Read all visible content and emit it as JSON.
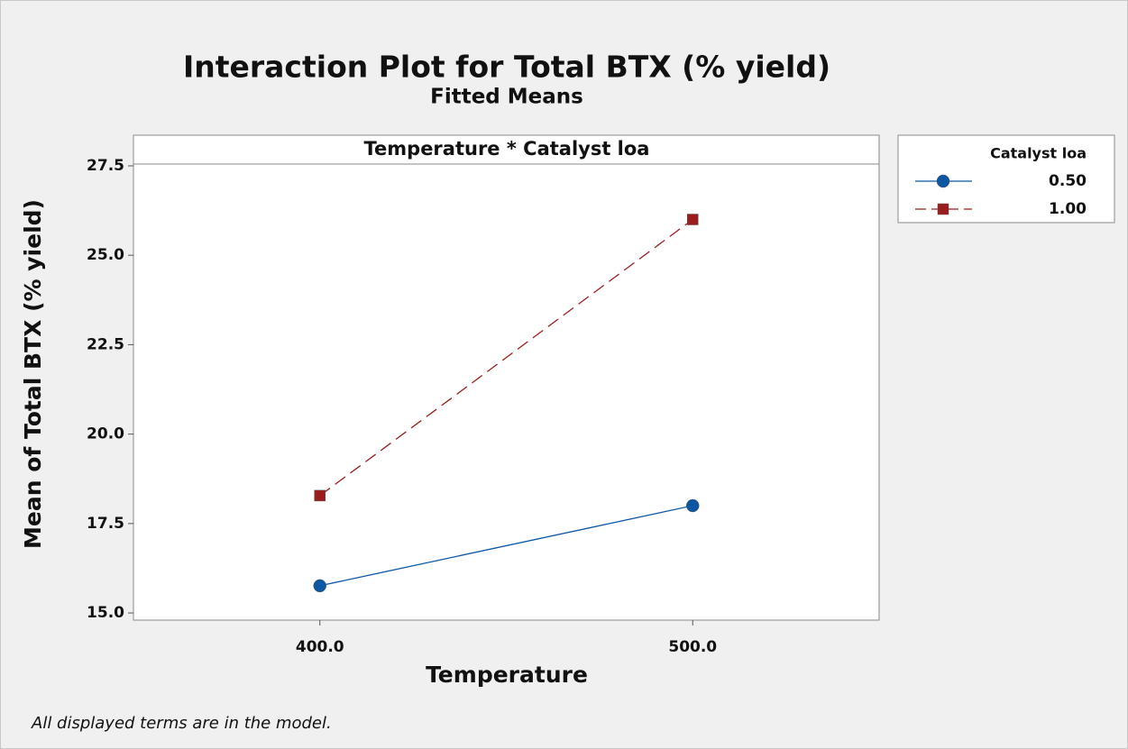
{
  "chart_data": {
    "type": "line",
    "title": "Interaction Plot for Total BTX (% yield)",
    "subtitle": "Fitted Means",
    "panel_title": "Temperature * Catalyst loa",
    "x_label": "Temperature",
    "y_label": "Mean of Total BTX (% yield)",
    "footnote": "All displayed terms are in the model.",
    "legend_title": "Catalyst loa",
    "x": [
      400,
      500
    ],
    "xlim": [
      350,
      550
    ],
    "xticks": [
      {
        "value": 400,
        "label": "400.0"
      },
      {
        "value": 500,
        "label": "500.0"
      }
    ],
    "ylim": [
      14.8,
      27.55
    ],
    "yticks": [
      {
        "value": 15,
        "label": "15.0"
      },
      17.5,
      {
        "value": 20,
        "label": "20.0"
      },
      22.5,
      {
        "value": 25,
        "label": "25.0"
      },
      27.5
    ],
    "series": [
      {
        "name": "0.50",
        "color": "#0b57a4",
        "marker": "circle",
        "line_style": "solid",
        "values": [
          15.76,
          18.0
        ]
      },
      {
        "name": "1.00",
        "color": "#9b1c1c",
        "marker": "square",
        "line_style": "dashed",
        "values": [
          18.28,
          26.0
        ]
      }
    ]
  }
}
